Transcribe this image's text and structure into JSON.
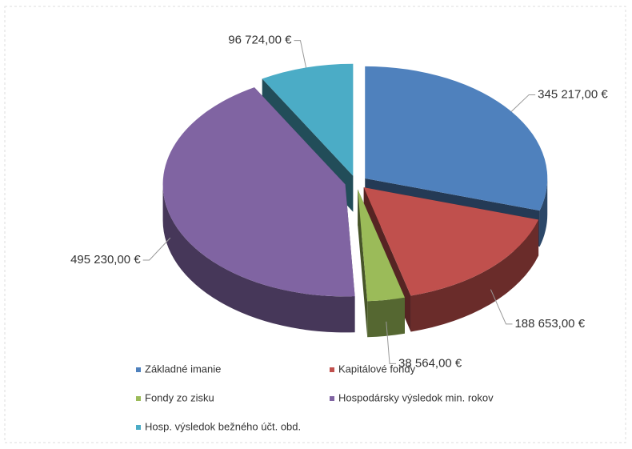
{
  "chart_data": {
    "type": "pie3d",
    "categories": [
      "Základné imanie",
      "Kapitálové fondy",
      "Fondy zo zisku",
      "Hospodársky výsledok min. rokov",
      "Hosp. výsledok bežného účt. obd."
    ],
    "values": [
      345217,
      188653,
      38564,
      495230,
      96724
    ],
    "value_labels": [
      "345 217,00 €",
      "188 653,00 €",
      "38 564,00 €",
      "495 230,00 €",
      "96 724,00 €"
    ],
    "colors": [
      "#4f81bd",
      "#c0504d",
      "#9bbb59",
      "#8064a2",
      "#4bacc6"
    ],
    "legend": "bottom"
  }
}
